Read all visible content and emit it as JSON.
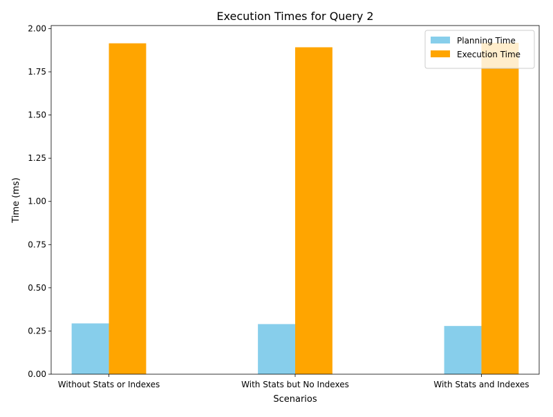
{
  "chart_data": {
    "type": "bar",
    "title": "Execution Times for Query 2",
    "xlabel": "Scenarios",
    "ylabel": "Time (ms)",
    "categories": [
      "Without Stats or Indexes",
      "With Stats but No Indexes",
      "With Stats and Indexes"
    ],
    "series": [
      {
        "name": "Planning Time",
        "color": "#87ceeb",
        "values": [
          0.294,
          0.29,
          0.279
        ]
      },
      {
        "name": "Execution Time",
        "color": "#ffa500",
        "values": [
          1.915,
          1.892,
          1.918
        ]
      }
    ],
    "ylim": [
      0,
      2.0178
    ],
    "yticks": [
      0.0,
      0.25,
      0.5,
      0.75,
      1.0,
      1.25,
      1.5,
      1.75,
      2.0
    ],
    "ytick_labels": [
      "0.00",
      "0.25",
      "0.50",
      "0.75",
      "1.00",
      "1.25",
      "1.50",
      "1.75",
      "2.00"
    ],
    "grid": false,
    "legend_position": "top-right"
  }
}
